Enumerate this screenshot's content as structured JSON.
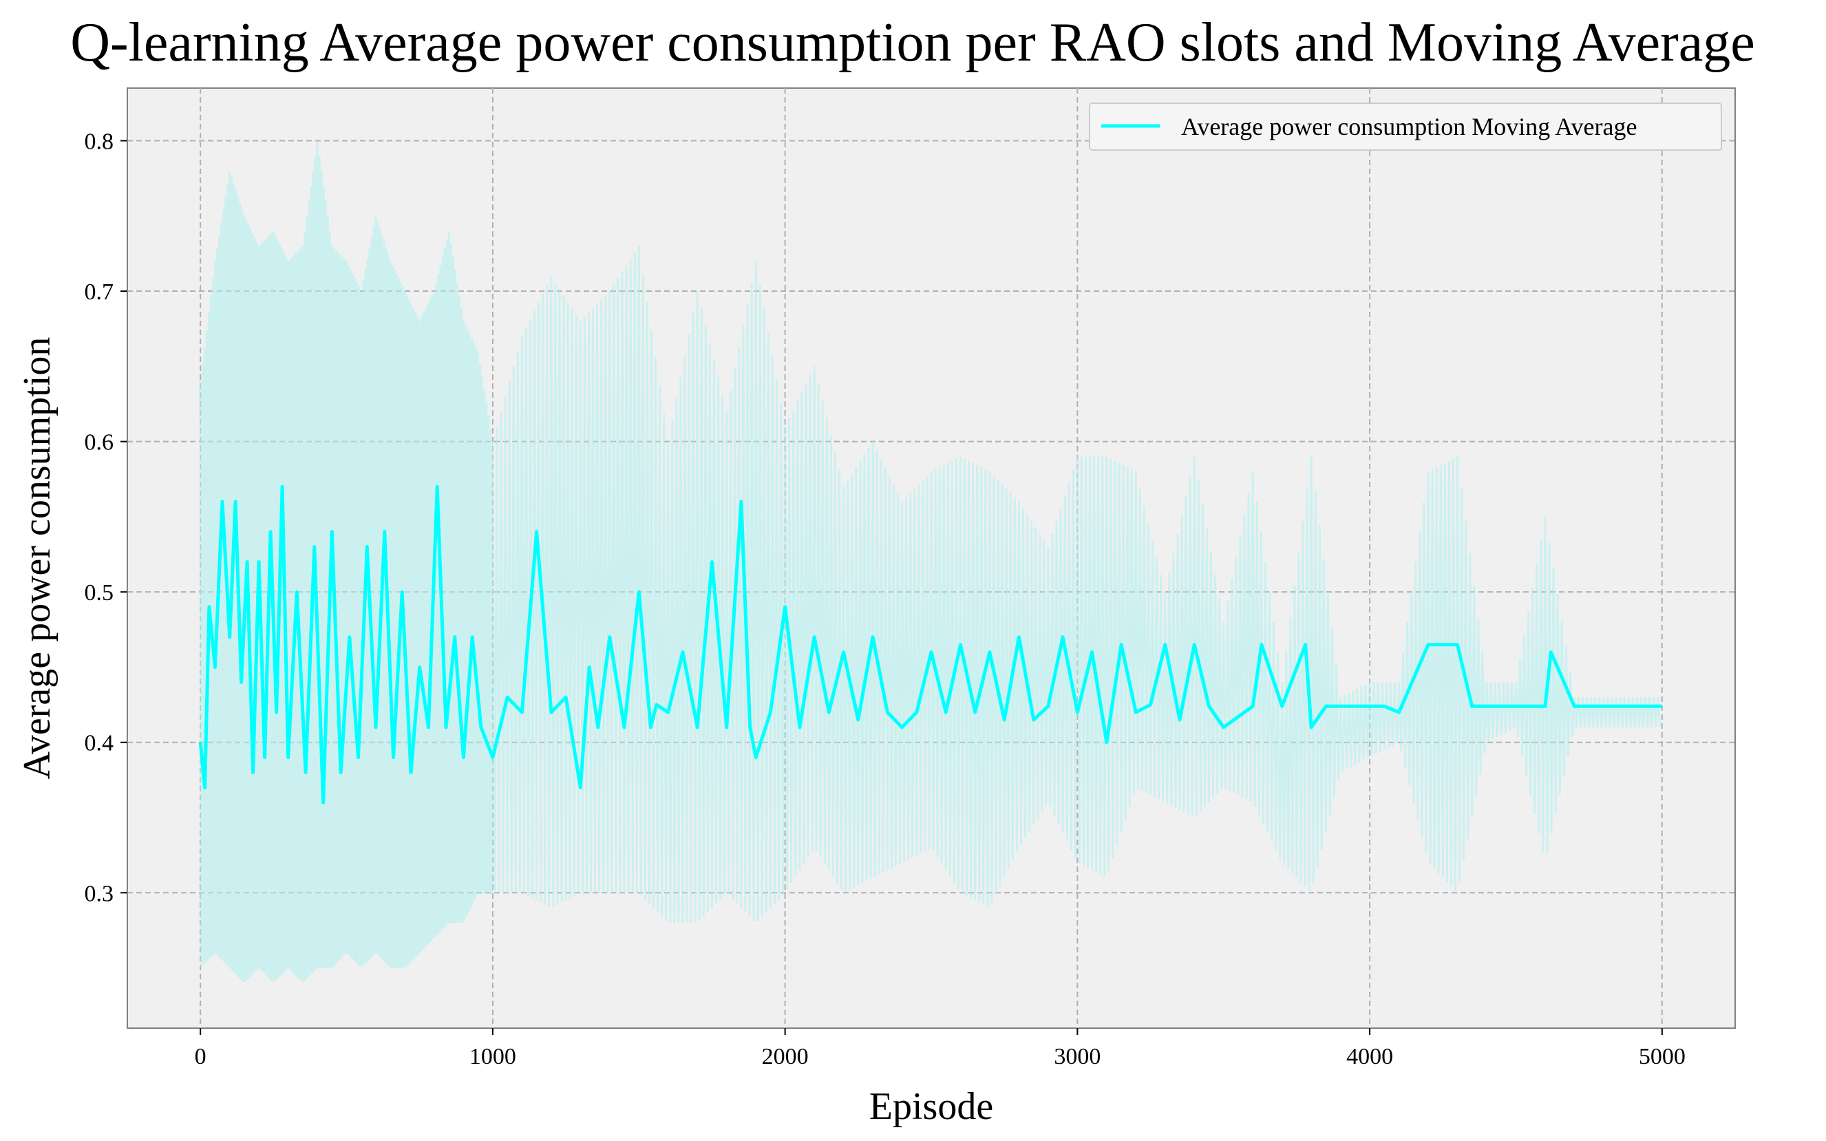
{
  "chart_data": {
    "type": "line",
    "title": "Q-learning Average power consumption per RAO slots and Moving Average",
    "xlabel": "Episode",
    "ylabel": "Average power consumption",
    "xlim": [
      -250,
      5250
    ],
    "ylim": [
      0.21,
      0.835
    ],
    "xticks": [
      0,
      1000,
      2000,
      3000,
      4000,
      5000
    ],
    "yticks": [
      0.3,
      0.4,
      0.5,
      0.6,
      0.7,
      0.8
    ],
    "grid": true,
    "legend_position": "top-right",
    "plot_background": "#f0f0f0",
    "series": [
      {
        "name": "",
        "role": "raw",
        "color": "#aff0f0",
        "x": [
          0,
          50,
          100,
          150,
          200,
          250,
          300,
          350,
          400,
          450,
          500,
          550,
          600,
          650,
          700,
          750,
          800,
          850,
          900,
          950,
          1000,
          1100,
          1200,
          1300,
          1400,
          1500,
          1600,
          1700,
          1800,
          1900,
          2000,
          2100,
          2200,
          2300,
          2400,
          2500,
          2600,
          2700,
          2800,
          2900,
          3000,
          3100,
          3200,
          3300,
          3400,
          3500,
          3600,
          3700,
          3800,
          3900,
          4000,
          4100,
          4200,
          4300,
          4400,
          4500,
          4600,
          4700,
          4800,
          4900,
          5000
        ],
        "y_low": [
          0.25,
          0.26,
          0.25,
          0.24,
          0.25,
          0.24,
          0.25,
          0.24,
          0.25,
          0.25,
          0.26,
          0.25,
          0.26,
          0.25,
          0.25,
          0.26,
          0.27,
          0.28,
          0.28,
          0.3,
          0.3,
          0.3,
          0.29,
          0.3,
          0.3,
          0.3,
          0.28,
          0.28,
          0.3,
          0.28,
          0.3,
          0.33,
          0.3,
          0.31,
          0.32,
          0.33,
          0.3,
          0.29,
          0.33,
          0.36,
          0.32,
          0.31,
          0.37,
          0.36,
          0.35,
          0.37,
          0.36,
          0.32,
          0.3,
          0.38,
          0.39,
          0.4,
          0.32,
          0.3,
          0.4,
          0.41,
          0.32,
          0.41,
          0.41,
          0.41,
          0.41
        ],
        "y_high": [
          0.64,
          0.72,
          0.78,
          0.75,
          0.73,
          0.74,
          0.72,
          0.73,
          0.8,
          0.73,
          0.72,
          0.7,
          0.75,
          0.72,
          0.7,
          0.68,
          0.7,
          0.74,
          0.68,
          0.66,
          0.6,
          0.67,
          0.71,
          0.68,
          0.7,
          0.73,
          0.6,
          0.7,
          0.62,
          0.72,
          0.61,
          0.65,
          0.57,
          0.6,
          0.56,
          0.58,
          0.59,
          0.58,
          0.56,
          0.53,
          0.59,
          0.59,
          0.58,
          0.5,
          0.59,
          0.48,
          0.58,
          0.44,
          0.59,
          0.43,
          0.44,
          0.44,
          0.58,
          0.59,
          0.44,
          0.44,
          0.55,
          0.43,
          0.43,
          0.43,
          0.43
        ]
      },
      {
        "name": "Average power consumption Moving Average",
        "role": "moving-average",
        "color": "#00ffff",
        "x": [
          0,
          15,
          30,
          50,
          75,
          100,
          120,
          140,
          160,
          180,
          200,
          220,
          240,
          260,
          280,
          300,
          330,
          360,
          390,
          420,
          450,
          480,
          510,
          540,
          570,
          600,
          630,
          660,
          690,
          720,
          750,
          780,
          810,
          840,
          870,
          900,
          930,
          960,
          1000,
          1050,
          1100,
          1150,
          1200,
          1250,
          1300,
          1330,
          1360,
          1400,
          1450,
          1500,
          1540,
          1560,
          1600,
          1650,
          1700,
          1750,
          1800,
          1850,
          1880,
          1900,
          1950,
          2000,
          2050,
          2100,
          2150,
          2200,
          2250,
          2300,
          2350,
          2400,
          2450,
          2500,
          2550,
          2600,
          2650,
          2700,
          2750,
          2800,
          2850,
          2900,
          2950,
          3000,
          3050,
          3100,
          3150,
          3200,
          3250,
          3300,
          3350,
          3400,
          3450,
          3500,
          3600,
          3630,
          3700,
          3780,
          3800,
          3850,
          3900,
          4000,
          4050,
          4100,
          4200,
          4300,
          4350,
          4400,
          4500,
          4600,
          4620,
          4700,
          4800,
          4900,
          5000
        ],
        "y": [
          0.4,
          0.37,
          0.49,
          0.45,
          0.56,
          0.47,
          0.56,
          0.44,
          0.52,
          0.38,
          0.52,
          0.39,
          0.54,
          0.42,
          0.57,
          0.39,
          0.5,
          0.38,
          0.53,
          0.36,
          0.54,
          0.38,
          0.47,
          0.39,
          0.53,
          0.41,
          0.54,
          0.39,
          0.5,
          0.38,
          0.45,
          0.41,
          0.57,
          0.41,
          0.47,
          0.39,
          0.47,
          0.41,
          0.39,
          0.43,
          0.42,
          0.54,
          0.42,
          0.43,
          0.37,
          0.45,
          0.41,
          0.47,
          0.41,
          0.5,
          0.41,
          0.425,
          0.42,
          0.46,
          0.41,
          0.52,
          0.41,
          0.56,
          0.41,
          0.39,
          0.42,
          0.49,
          0.41,
          0.47,
          0.42,
          0.46,
          0.415,
          0.47,
          0.42,
          0.41,
          0.42,
          0.46,
          0.42,
          0.465,
          0.42,
          0.46,
          0.415,
          0.47,
          0.415,
          0.424,
          0.47,
          0.42,
          0.46,
          0.4,
          0.465,
          0.42,
          0.425,
          0.465,
          0.415,
          0.465,
          0.424,
          0.41,
          0.424,
          0.465,
          0.424,
          0.465,
          0.41,
          0.424,
          0.424,
          0.424,
          0.424,
          0.42,
          0.465,
          0.465,
          0.424,
          0.424,
          0.424,
          0.424,
          0.46,
          0.424,
          0.424,
          0.424,
          0.424
        ]
      }
    ]
  }
}
